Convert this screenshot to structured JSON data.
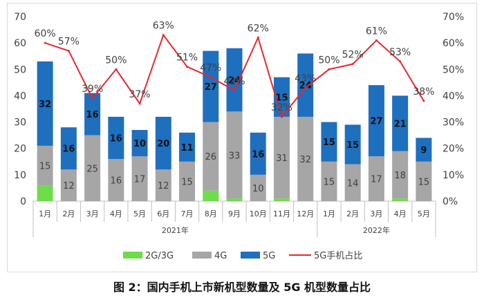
{
  "chart_data": {
    "type": "bar",
    "subtype": "stacked bar with line on secondary axis",
    "categories": [
      "1月",
      "2月",
      "3月",
      "4月",
      "5月",
      "6月",
      "7月",
      "8月",
      "9月",
      "10月",
      "11月",
      "12月",
      "1月",
      "2月",
      "3月",
      "4月",
      "5月"
    ],
    "year_groups": [
      {
        "label": "2021年",
        "start": 0,
        "end": 11
      },
      {
        "label": "2022年",
        "start": 12,
        "end": 16
      }
    ],
    "series": [
      {
        "name": "2G/3G",
        "color": "#6fdc4a",
        "values": [
          6,
          0,
          0,
          0,
          0,
          0,
          0,
          4,
          1,
          0,
          1,
          0,
          0,
          0,
          0,
          1,
          0
        ]
      },
      {
        "name": "4G",
        "color": "#a6a6a6",
        "values": [
          15,
          12,
          25,
          16,
          17,
          12,
          15,
          26,
          33,
          10,
          31,
          32,
          15,
          14,
          17,
          18,
          15
        ]
      },
      {
        "name": "5G",
        "color": "#1f6fbf",
        "values": [
          32,
          16,
          16,
          16,
          10,
          20,
          11,
          27,
          24,
          16,
          15,
          24,
          15,
          15,
          27,
          21,
          9
        ]
      },
      {
        "name": "5G手机占比",
        "type": "line",
        "axis": "right",
        "color": "#e8262b",
        "values": [
          60,
          57,
          39,
          50,
          37,
          63,
          51,
          47,
          42,
          62,
          32,
          43,
          50,
          52,
          61,
          53,
          38
        ],
        "labels": [
          "60%",
          "57%",
          "39%",
          "50%",
          "37%",
          "63%",
          "51%",
          "47%",
          "42%",
          "62%",
          "32%",
          "43%",
          "50%",
          "52%",
          "61%",
          "53%",
          "38%"
        ]
      }
    ],
    "y_left": {
      "min": 0,
      "max": 70,
      "ticks": [
        "0",
        "10",
        "20",
        "30",
        "40",
        "50",
        "60",
        "70"
      ]
    },
    "y_right": {
      "min": 0,
      "max": 70,
      "ticks": [
        "0%",
        "10%",
        "20%",
        "30%",
        "40%",
        "50%",
        "60%",
        "70%"
      ]
    },
    "legend_position": "bottom",
    "grid": false
  },
  "caption": "图 2：国内手机上市新机型数量及 5G 机型数量占比"
}
